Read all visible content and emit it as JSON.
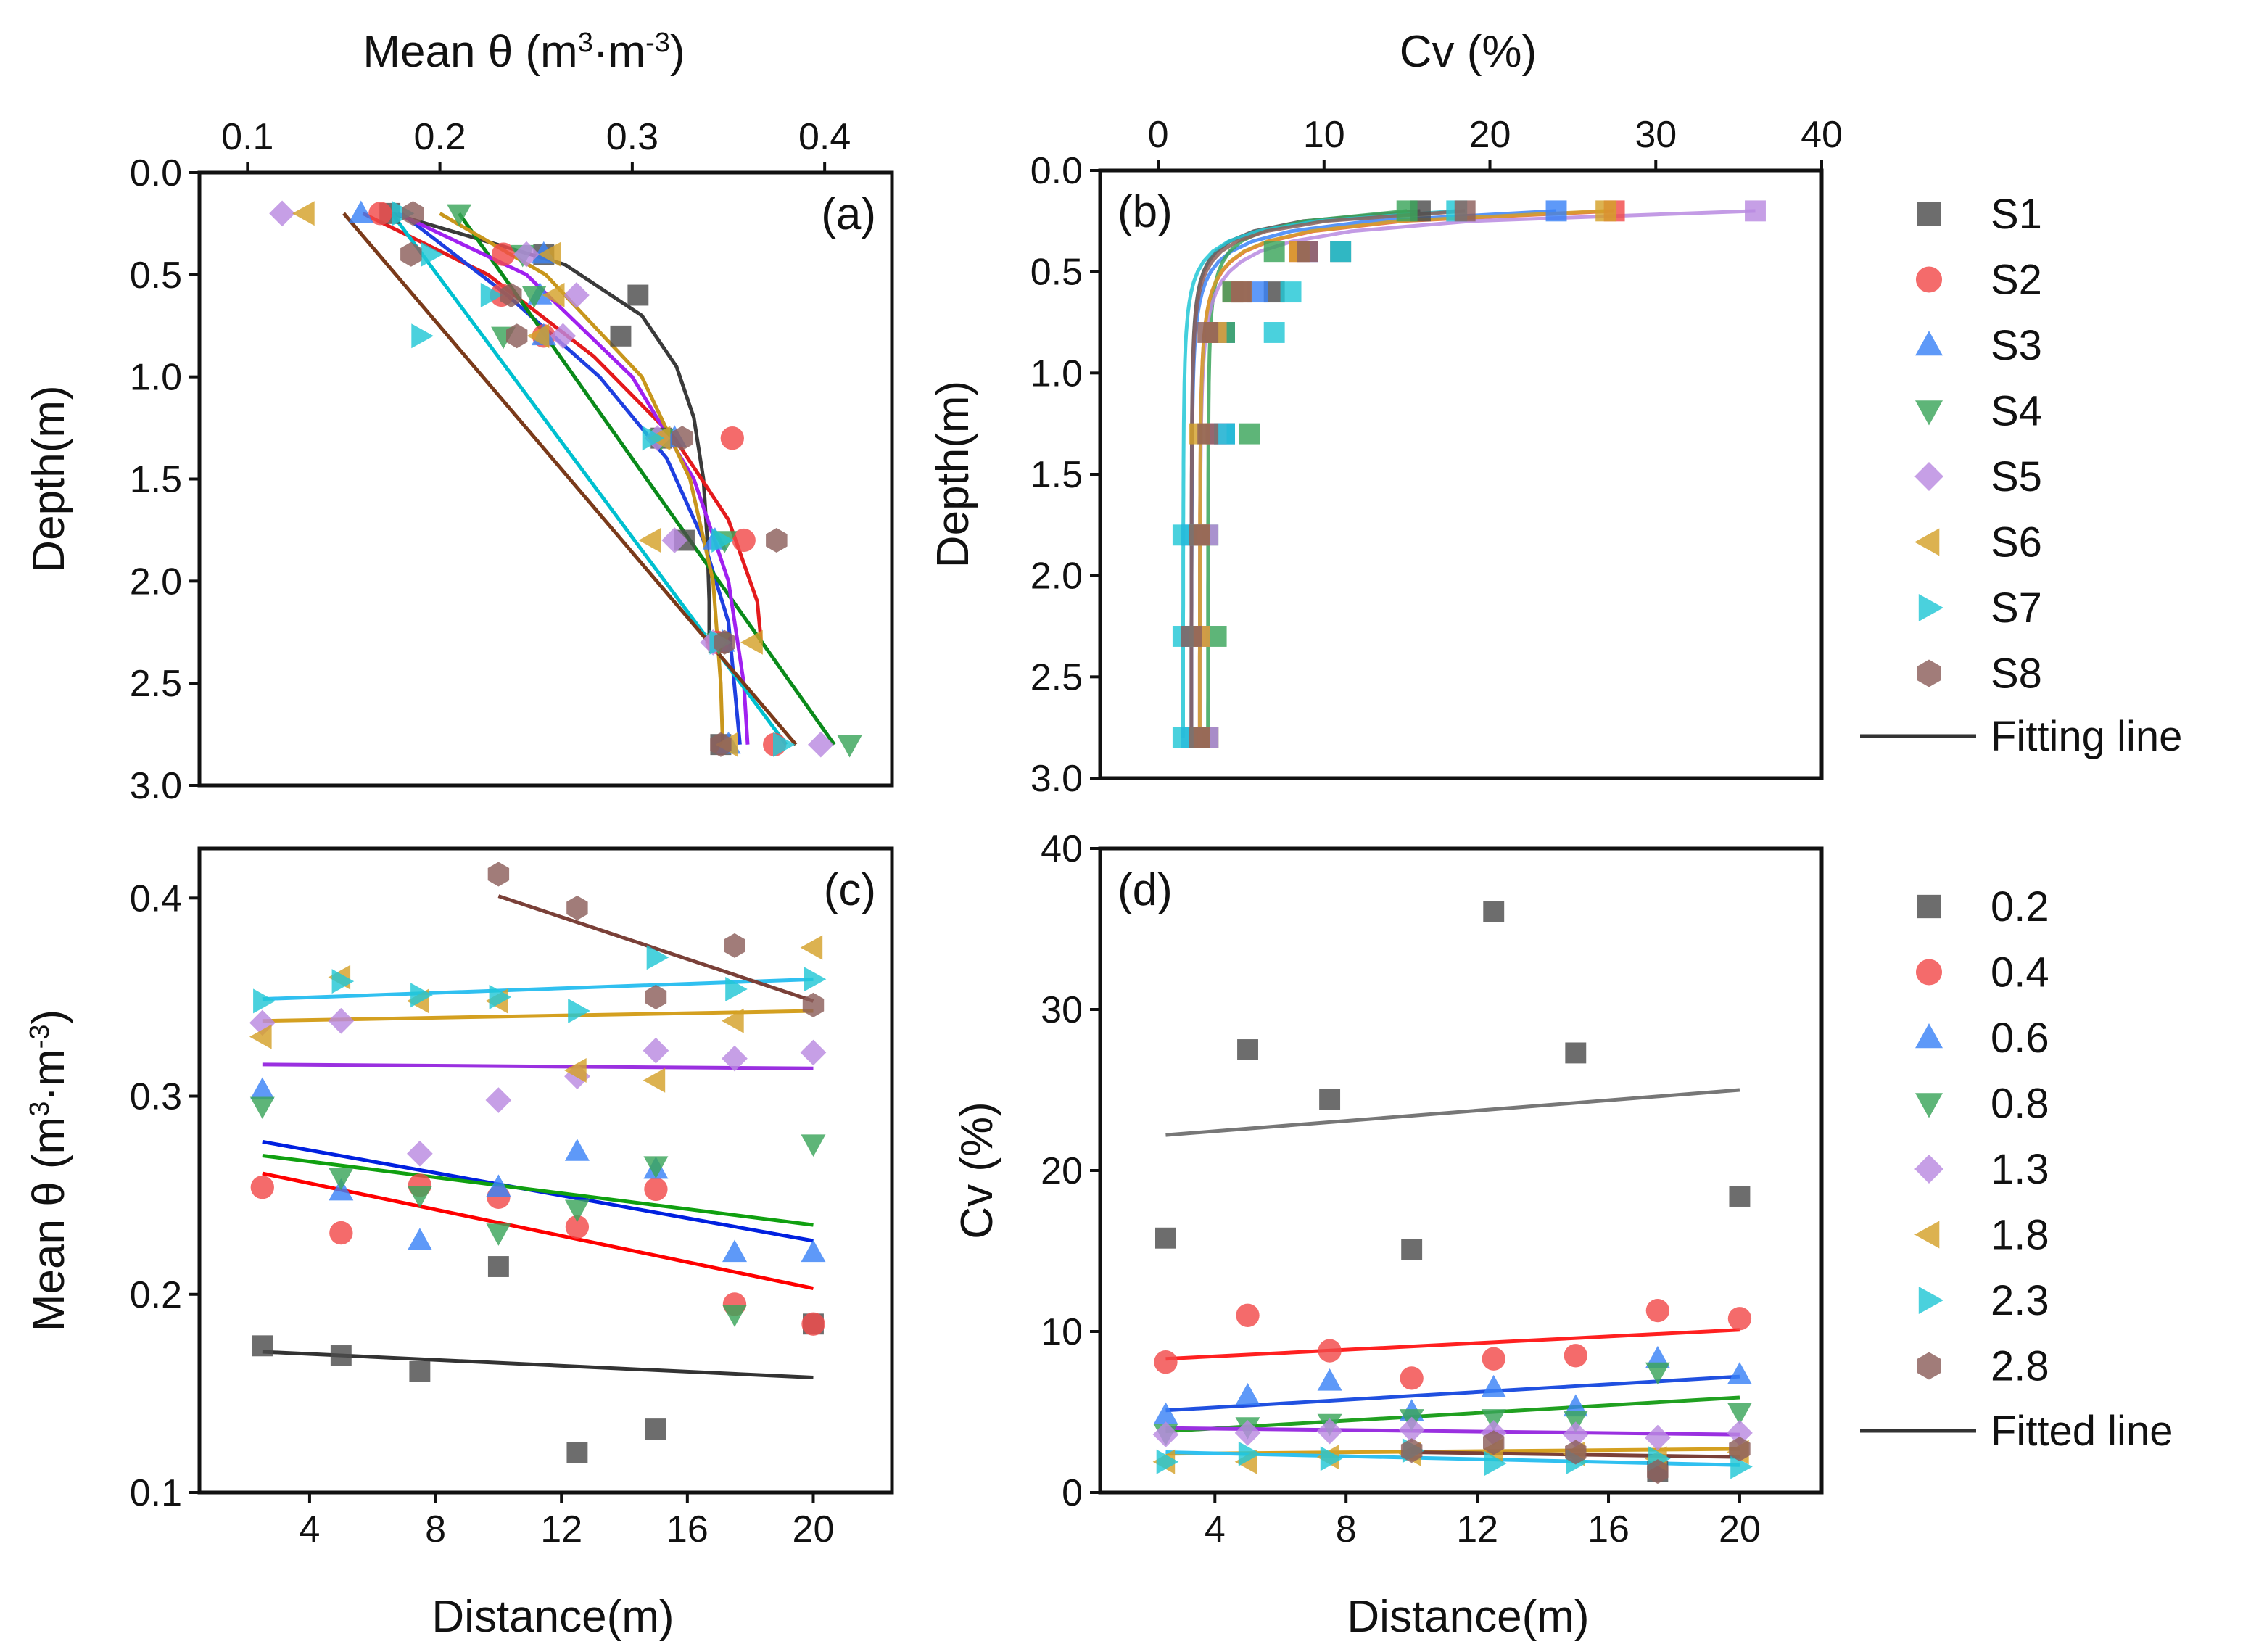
{
  "colors": {
    "S1": "#4d4d4d",
    "S2": "#f24b4b",
    "S3": "#3b82f6",
    "S4": "#3aa55a",
    "S5": "#b98ae0",
    "S6": "#d4a12a",
    "S7": "#22c7d6",
    "S8": "#8c5f5b",
    "line_a": [
      "#3a3a3a",
      "#e41a1c",
      "#1f3fe0",
      "#0a8a1a",
      "#a020f0",
      "#c8961c",
      "#00c0d0",
      "#7a3a1a"
    ],
    "line_c": [
      "#333333",
      "#ff0000",
      "#0020e0",
      "#10a010",
      "#9a30e0",
      "#d4a020",
      "#30c0f0",
      "#7a4038"
    ],
    "line_d": [
      "#777777",
      "#ff2020",
      "#2050e0",
      "#20a020",
      "#9a30e0",
      "#d4a020",
      "#30c0f0",
      "#7a4038"
    ]
  },
  "legend_top": {
    "items": [
      {
        "label": "S1",
        "marker": "square",
        "color": "#4d4d4d"
      },
      {
        "label": "S2",
        "marker": "circle",
        "color": "#f24b4b"
      },
      {
        "label": "S3",
        "marker": "triangle-up",
        "color": "#3b82f6"
      },
      {
        "label": "S4",
        "marker": "triangle-down",
        "color": "#3aa55a"
      },
      {
        "label": "S5",
        "marker": "diamond",
        "color": "#b98ae0"
      },
      {
        "label": "S6",
        "marker": "triangle-left",
        "color": "#d4a12a"
      },
      {
        "label": "S7",
        "marker": "triangle-right",
        "color": "#22c7d6"
      },
      {
        "label": "S8",
        "marker": "hexagon",
        "color": "#8c5f5b"
      }
    ],
    "line_label": "Fitting line"
  },
  "legend_bottom": {
    "items": [
      {
        "label": "0.2",
        "marker": "square",
        "color": "#4d4d4d"
      },
      {
        "label": "0.4",
        "marker": "circle",
        "color": "#f24b4b"
      },
      {
        "label": "0.6",
        "marker": "triangle-up",
        "color": "#3b82f6"
      },
      {
        "label": "0.8",
        "marker": "triangle-down",
        "color": "#3aa55a"
      },
      {
        "label": "1.3",
        "marker": "diamond",
        "color": "#b98ae0"
      },
      {
        "label": "1.8",
        "marker": "triangle-left",
        "color": "#d4a12a"
      },
      {
        "label": "2.3",
        "marker": "triangle-right",
        "color": "#22c7d6"
      },
      {
        "label": "2.8",
        "marker": "hexagon",
        "color": "#8c5f5b"
      }
    ],
    "line_label": "Fitted line"
  },
  "chart_data": [
    {
      "panel": "(a)",
      "type": "scatter",
      "xlabel_html": "Mean θ (m<tspan baseline-shift='super' font-size='38'>3</tspan>·m<tspan baseline-shift='super' font-size='38'>-3</tspan>)",
      "xlabel": "Mean θ (m3·m-3)",
      "ylabel": "Depth(m)",
      "xlim": [
        0.075,
        0.435
      ],
      "ylim": [
        0.0,
        3.0
      ],
      "xticks": [
        0.1,
        0.2,
        0.3,
        0.4
      ],
      "xtick_labels": [
        "0.1",
        "0.2",
        "0.3",
        "0.4"
      ],
      "yticks": [
        0.0,
        0.5,
        1.0,
        1.5,
        2.0,
        2.5,
        3.0
      ],
      "ytick_labels": [
        "0.0",
        "0.5",
        "1.0",
        "1.5",
        "2.0",
        "2.5",
        "3.0"
      ],
      "depths": [
        0.2,
        0.4,
        0.6,
        0.8,
        1.3,
        1.8,
        2.3,
        2.8
      ],
      "series": [
        {
          "name": "S1",
          "marker": "square",
          "x": [
            0.174,
            0.254,
            0.303,
            0.294,
            0.315,
            0.327,
            0.345,
            0.346
          ],
          "fit": {
            "d": [
              0.2,
              0.45,
              0.7,
              0.95,
              1.2,
              1.5,
              1.8,
              2.1,
              2.3
            ],
            "x": [
              0.175,
              0.265,
              0.305,
              0.323,
              0.332,
              0.337,
              0.339,
              0.34,
              0.34
            ]
          }
        },
        {
          "name": "S2",
          "marker": "circle",
          "x": [
            0.169,
            0.233,
            0.232,
            0.254,
            0.352,
            0.358,
            0.344,
            0.374
          ],
          "fit": {
            "d": [
              0.2,
              0.5,
              0.9,
              1.3,
              1.7,
              2.1,
              2.3
            ],
            "x": [
              0.16,
              0.225,
              0.28,
              0.322,
              0.35,
              0.365,
              0.367
            ]
          }
        },
        {
          "name": "S3",
          "marker": "triangle-up",
          "x": [
            0.159,
            0.254,
            0.252,
            0.254,
            0.322,
            0.343,
            0.347,
            0.35
          ],
          "fit": {
            "d": [
              0.2,
              0.6,
              1.0,
              1.4,
              1.8,
              2.2,
              2.8
            ],
            "x": [
              0.18,
              0.235,
              0.283,
              0.318,
              0.337,
              0.35,
              0.356
            ]
          }
        },
        {
          "name": "S4",
          "marker": "triangle-down",
          "x": [
            0.21,
            0.243,
            0.249,
            0.233,
            0.315,
            0.348,
            0.345,
            0.413
          ],
          "fit": {
            "d": [
              0.2,
              2.8
            ],
            "x": [
              0.21,
              0.405
            ]
          }
        },
        {
          "name": "S5",
          "marker": "diamond",
          "x": [
            0.118,
            0.245,
            0.271,
            0.264,
            0.313,
            0.322,
            0.342,
            0.398
          ],
          "fit": {
            "d": [
              0.2,
              0.5,
              1.0,
              1.5,
              2.0,
              2.5,
              2.8
            ],
            "x": [
              0.178,
              0.245,
              0.3,
              0.332,
              0.35,
              0.358,
              0.36
            ]
          }
        },
        {
          "name": "S6",
          "marker": "triangle-left",
          "x": [
            0.13,
            0.258,
            0.26,
            0.252,
            0.315,
            0.31,
            0.363,
            0.35
          ],
          "fit": {
            "d": [
              0.2,
              0.5,
              1.0,
              1.5,
              2.0,
              2.5,
              2.8
            ],
            "x": [
              0.2,
              0.255,
              0.305,
              0.33,
              0.342,
              0.346,
              0.347
            ]
          }
        },
        {
          "name": "S7",
          "marker": "triangle-right",
          "x": [
            0.18,
            0.195,
            0.226,
            0.19,
            0.31,
            0.346,
            0.345,
            0.378
          ],
          "fit": {
            "d": [
              0.2,
              2.8
            ],
            "x": [
              0.175,
              0.38
            ]
          }
        },
        {
          "name": "S8",
          "marker": "hexagon",
          "x": [
            0.186,
            0.185,
            0.237,
            0.24,
            0.326,
            0.375,
            0.348,
            0.346
          ],
          "fit": {
            "d": [
              0.2,
              2.8
            ],
            "x": [
              0.15,
              0.385
            ]
          }
        }
      ]
    },
    {
      "panel": "(b)",
      "type": "scatter",
      "xlabel": "Cv (%)",
      "ylabel": "Depth(m)",
      "xlim": [
        -3.5,
        40.0
      ],
      "ylim": [
        0.0,
        3.0
      ],
      "xticks": [
        0,
        10,
        20,
        30,
        40
      ],
      "xtick_labels": [
        "0",
        "10",
        "20",
        "30",
        "40"
      ],
      "yticks": [
        0.0,
        0.5,
        1.0,
        1.5,
        2.0,
        2.5,
        3.0
      ],
      "ytick_labels": [
        "0.0",
        "0.5",
        "1.0",
        "1.5",
        "2.0",
        "2.5",
        "3.0"
      ],
      "depths": [
        0.2,
        0.4,
        0.6,
        0.8,
        1.3,
        1.8,
        2.3,
        2.8
      ],
      "series": [
        {
          "name": "S1",
          "marker": "square",
          "x": [
            15.8,
            11.0,
            7.0,
            3.5,
            4.0,
            2.5,
            2.0,
            3.0
          ]
        },
        {
          "name": "S2",
          "marker": "circle",
          "x": [
            27.5,
            8.5,
            4.5,
            3.5,
            3.5,
            2.5,
            2.5,
            3.0
          ]
        },
        {
          "name": "S3",
          "marker": "triangle-up",
          "x": [
            24.0,
            9.0,
            6.0,
            4.0,
            4.0,
            2.0,
            2.0,
            2.0
          ]
        },
        {
          "name": "S4",
          "marker": "triangle-down",
          "x": [
            15.0,
            7.0,
            4.5,
            4.0,
            5.5,
            3.0,
            3.5,
            3.0
          ]
        },
        {
          "name": "S5",
          "marker": "diamond",
          "x": [
            36.0,
            9.0,
            5.0,
            3.5,
            3.5,
            3.0,
            2.5,
            3.0
          ]
        },
        {
          "name": "S6",
          "marker": "triangle-left",
          "x": [
            27.0,
            8.5,
            5.0,
            3.5,
            2.5,
            2.5,
            2.5,
            2.5
          ]
        },
        {
          "name": "S7",
          "marker": "triangle-right",
          "x": [
            18.0,
            11.0,
            8.0,
            7.0,
            4.0,
            1.5,
            1.5,
            1.5
          ]
        },
        {
          "name": "S8",
          "marker": "hexagon",
          "x": [
            18.5,
            9.0,
            5.0,
            3.0,
            3.0,
            2.5,
            2.0,
            2.5
          ]
        }
      ]
    },
    {
      "panel": "(c)",
      "type": "scatter",
      "xlabel": "Distance(m)",
      "ylabel_html": "Mean θ (m<tspan baseline-shift='super' font-size='38'>3</tspan>·m<tspan baseline-shift='super' font-size='38'>-3</tspan>)",
      "ylabel": "Mean θ (m3·m-3)",
      "xlim": [
        0.5,
        22.5
      ],
      "ylim": [
        0.1,
        0.425
      ],
      "xticks": [
        4,
        8,
        12,
        16,
        20
      ],
      "xtick_labels": [
        "4",
        "8",
        "12",
        "16",
        "20"
      ],
      "yticks": [
        0.1,
        0.2,
        0.3,
        0.4
      ],
      "ytick_labels": [
        "0.1",
        "0.2",
        "0.3",
        "0.4"
      ],
      "x": [
        2.5,
        5,
        7.5,
        10,
        12.5,
        15,
        17.5,
        20
      ],
      "series": [
        {
          "name": "0.2",
          "marker": "square",
          "values": [
            0.174,
            0.169,
            0.161,
            0.214,
            0.12,
            0.132,
            null,
            0.185
          ],
          "fit": [
            [
              2.5,
              0.171
            ],
            [
              20,
              0.158
            ]
          ]
        },
        {
          "name": "0.4",
          "marker": "circle",
          "values": [
            0.254,
            0.231,
            0.255,
            0.249,
            0.234,
            0.253,
            0.195,
            0.185
          ],
          "fit": [
            [
              2.5,
              0.261
            ],
            [
              20,
              0.203
            ]
          ]
        },
        {
          "name": "0.6",
          "marker": "triangle-up",
          "values": [
            0.303,
            0.252,
            0.227,
            0.254,
            0.272,
            0.263,
            0.221,
            0.221
          ],
          "fit": [
            [
              2.5,
              0.277
            ],
            [
              20,
              0.227
            ]
          ]
        },
        {
          "name": "0.8",
          "marker": "triangle-down",
          "values": [
            0.295,
            0.259,
            0.25,
            0.231,
            0.243,
            0.265,
            0.19,
            0.276
          ],
          "fit": [
            [
              2.5,
              0.27
            ],
            [
              20,
              0.235
            ]
          ]
        },
        {
          "name": "1.3",
          "marker": "diamond",
          "values": [
            0.337,
            0.338,
            0.271,
            0.298,
            0.31,
            0.323,
            0.319,
            0.322
          ],
          "fit": [
            [
              2.5,
              0.316
            ],
            [
              20,
              0.314
            ]
          ]
        },
        {
          "name": "1.8",
          "marker": "triangle-left",
          "values": [
            0.33,
            0.36,
            0.348,
            0.348,
            0.313,
            0.308,
            0.338,
            0.375
          ],
          "fit": [
            [
              2.5,
              0.338
            ],
            [
              20,
              0.343
            ]
          ]
        },
        {
          "name": "2.3",
          "marker": "triangle-right",
          "values": [
            0.348,
            0.358,
            0.351,
            0.35,
            0.343,
            0.37,
            0.354,
            0.359
          ],
          "fit": [
            [
              2.5,
              0.349
            ],
            [
              20,
              0.359
            ]
          ]
        },
        {
          "name": "2.8",
          "marker": "hexagon",
          "values": [
            null,
            null,
            null,
            0.412,
            0.395,
            0.35,
            0.376,
            0.346
          ],
          "fit": [
            [
              10,
              0.401
            ],
            [
              20,
              0.348
            ]
          ]
        }
      ]
    },
    {
      "panel": "(d)",
      "type": "scatter",
      "xlabel": "Distance(m)",
      "ylabel": "Cv (%)",
      "xlim": [
        0.5,
        22.5
      ],
      "ylim": [
        0,
        40
      ],
      "xticks": [
        4,
        8,
        12,
        16,
        20
      ],
      "xtick_labels": [
        "4",
        "8",
        "12",
        "16",
        "20"
      ],
      "yticks": [
        0,
        10,
        20,
        30,
        40
      ],
      "ytick_labels": [
        "0",
        "10",
        "20",
        "30",
        "40"
      ],
      "x": [
        2.5,
        5,
        7.5,
        10,
        12.5,
        15,
        17.5,
        20
      ],
      "series": [
        {
          "name": "0.2",
          "marker": "square",
          "values": [
            15.8,
            27.5,
            24.4,
            15.1,
            36.1,
            27.3,
            1.3,
            18.4
          ],
          "fit": [
            [
              2.5,
              22.2
            ],
            [
              20,
              25.0
            ]
          ]
        },
        {
          "name": "0.4",
          "marker": "circle",
          "values": [
            8.1,
            11.0,
            8.8,
            7.1,
            8.3,
            8.5,
            11.3,
            10.8
          ],
          "fit": [
            [
              2.5,
              8.3
            ],
            [
              20,
              10.1
            ]
          ]
        },
        {
          "name": "0.6",
          "marker": "triangle-up",
          "values": [
            4.8,
            6.0,
            6.9,
            5.0,
            6.5,
            5.3,
            8.3,
            7.3
          ],
          "fit": [
            [
              2.5,
              5.1
            ],
            [
              20,
              7.2
            ]
          ]
        },
        {
          "name": "0.8",
          "marker": "triangle-down",
          "values": [
            3.7,
            4.1,
            4.3,
            4.6,
            4.6,
            4.5,
            7.5,
            5.0
          ],
          "fit": [
            [
              2.5,
              3.8
            ],
            [
              20,
              5.9
            ]
          ]
        },
        {
          "name": "1.3",
          "marker": "diamond",
          "values": [
            3.6,
            3.7,
            3.8,
            3.9,
            3.7,
            3.6,
            3.4,
            3.7
          ],
          "fit": [
            [
              2.5,
              4.0
            ],
            [
              20,
              3.6
            ]
          ]
        },
        {
          "name": "1.8",
          "marker": "triangle-left",
          "values": [
            1.9,
            1.9,
            2.2,
            2.4,
            2.6,
            2.4,
            2.1,
            2.5
          ],
          "fit": [
            [
              2.5,
              2.4
            ],
            [
              20,
              2.7
            ]
          ]
        },
        {
          "name": "2.3",
          "marker": "triangle-right",
          "values": [
            1.9,
            2.4,
            2.1,
            2.6,
            1.8,
            1.9,
            2.1,
            1.6
          ],
          "fit": [
            [
              2.5,
              2.5
            ],
            [
              20,
              1.7
            ]
          ]
        },
        {
          "name": "2.8",
          "marker": "hexagon",
          "values": [
            null,
            null,
            null,
            2.6,
            3.1,
            2.5,
            1.3,
            2.7
          ],
          "fit": [
            [
              10,
              2.5
            ],
            [
              20,
              2.2
            ]
          ]
        }
      ]
    }
  ]
}
